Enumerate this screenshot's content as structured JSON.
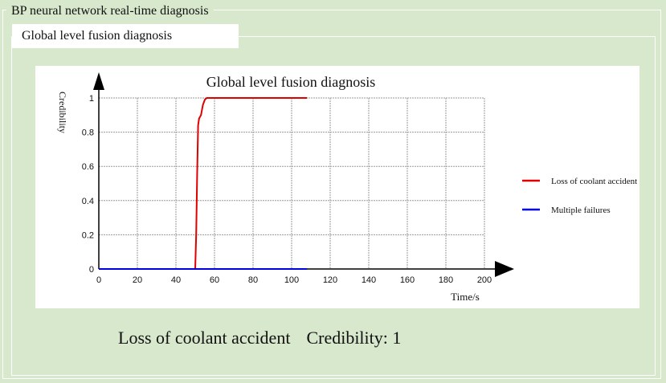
{
  "window": {
    "outer_title": "BP neural network real-time diagnosis",
    "inner_title": "Global level fusion diagnosis"
  },
  "result": {
    "fault_label": "Loss of coolant accident",
    "credibility_text": "Credibility: 1"
  },
  "colors": {
    "background": "#d8e8cc",
    "loss_of_coolant": "#e00000",
    "multiple_failures": "#0000e0",
    "grid": "#9a9a9a"
  },
  "chart_data": {
    "type": "line",
    "title": "Global level fusion diagnosis",
    "xlabel": "Time/s",
    "ylabel": "Credibility",
    "xlim": [
      0,
      200
    ],
    "ylim": [
      0,
      1
    ],
    "x_ticks": [
      0,
      20,
      40,
      60,
      80,
      100,
      120,
      140,
      160,
      180,
      200
    ],
    "y_ticks": [
      0,
      0.2,
      0.4,
      0.6,
      0.8,
      1
    ],
    "y_tick_labels": [
      "0",
      "0.2",
      "0.4",
      "0.6",
      "0.8",
      "1"
    ],
    "grid": true,
    "legend_position": "right",
    "series": [
      {
        "name": "Loss of coolant accident",
        "color": "#e00000",
        "x": [
          0,
          50,
          50.5,
          51,
          51.5,
          52,
          53,
          54,
          55,
          56,
          58,
          60,
          108
        ],
        "y": [
          0,
          0,
          0.2,
          0.55,
          0.84,
          0.88,
          0.9,
          0.96,
          0.99,
          1,
          1,
          1,
          1
        ]
      },
      {
        "name": "Multiple failures",
        "color": "#0000e0",
        "x": [
          0,
          108
        ],
        "y": [
          0,
          0
        ]
      }
    ]
  }
}
